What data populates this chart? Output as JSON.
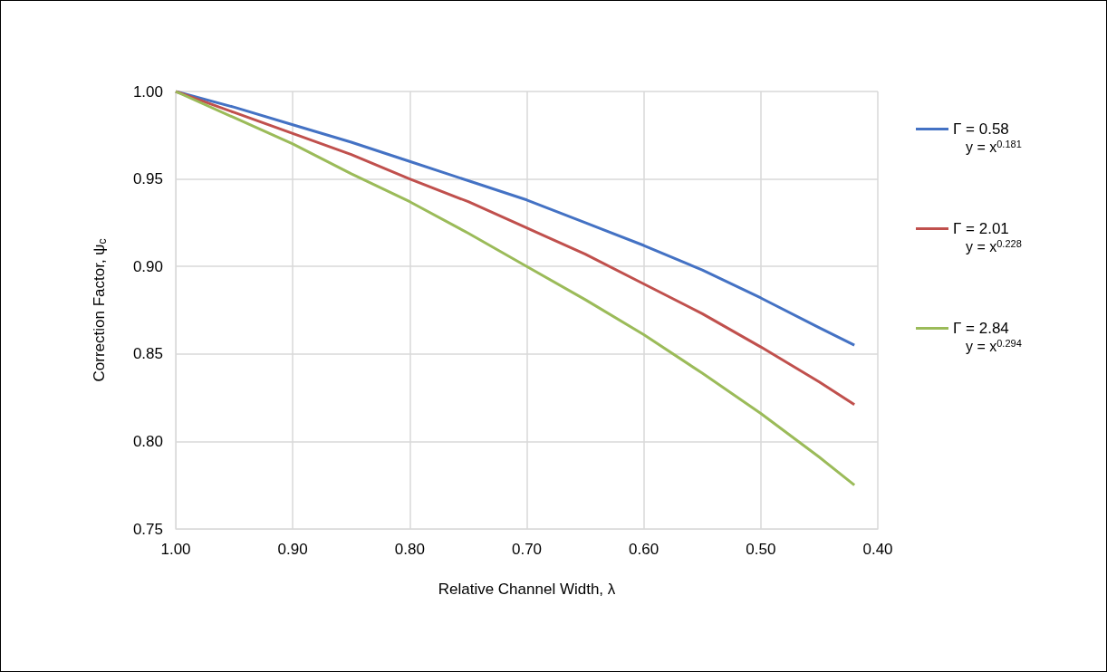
{
  "chart_data": {
    "type": "line",
    "xlabel": "Relative Channel Width, λ",
    "ylabel": "Correction Factor, ψ$_{c}$",
    "x": [
      1.0,
      0.95,
      0.9,
      0.85,
      0.8,
      0.75,
      0.7,
      0.65,
      0.6,
      0.55,
      0.5,
      0.45,
      0.42
    ],
    "series": [
      {
        "name": "Γ = 0.58",
        "color": "#4472c4",
        "values": [
          1.0,
          0.991,
          0.981,
          0.971,
          0.96,
          0.949,
          0.938,
          0.925,
          0.912,
          0.898,
          0.882,
          0.865,
          0.855
        ]
      },
      {
        "name": "Γ = 2.01",
        "color": "#c0504d",
        "values": [
          1.0,
          0.988,
          0.976,
          0.964,
          0.95,
          0.937,
          0.922,
          0.907,
          0.89,
          0.873,
          0.854,
          0.834,
          0.821
        ]
      },
      {
        "name": "Γ = 2.84",
        "color": "#9bbb59",
        "values": [
          1.0,
          0.985,
          0.97,
          0.953,
          0.937,
          0.919,
          0.9,
          0.881,
          0.861,
          0.839,
          0.816,
          0.791,
          0.775
        ]
      }
    ],
    "annotations": [
      "y = x$^{0.181}$",
      "y = x$^{0.228}$",
      "y = x$^{0.294}$"
    ],
    "xlim": [
      1.0,
      0.4
    ],
    "xticks": [
      {
        "value": 1.0,
        "label": "1.00"
      },
      {
        "value": 0.9,
        "label": "0.90"
      },
      {
        "value": 0.8,
        "label": "0.80"
      },
      {
        "value": 0.7,
        "label": "0.70"
      },
      {
        "value": 0.6,
        "label": "0.60"
      },
      {
        "value": 0.5,
        "label": "0.50"
      },
      {
        "value": 0.4,
        "label": "0.40"
      }
    ],
    "ylim": [
      0.75,
      1.0
    ],
    "yticks": [
      {
        "value": 0.75,
        "label": "0.75"
      },
      {
        "value": 0.8,
        "label": "0.80"
      },
      {
        "value": 0.85,
        "label": "0.85"
      },
      {
        "value": 0.9,
        "label": "0.90"
      },
      {
        "value": 0.95,
        "label": "0.95"
      },
      {
        "value": 1.0,
        "label": "1.00"
      }
    ],
    "grid": true,
    "legend": "right",
    "marker": "none",
    "line_style": "solid"
  }
}
